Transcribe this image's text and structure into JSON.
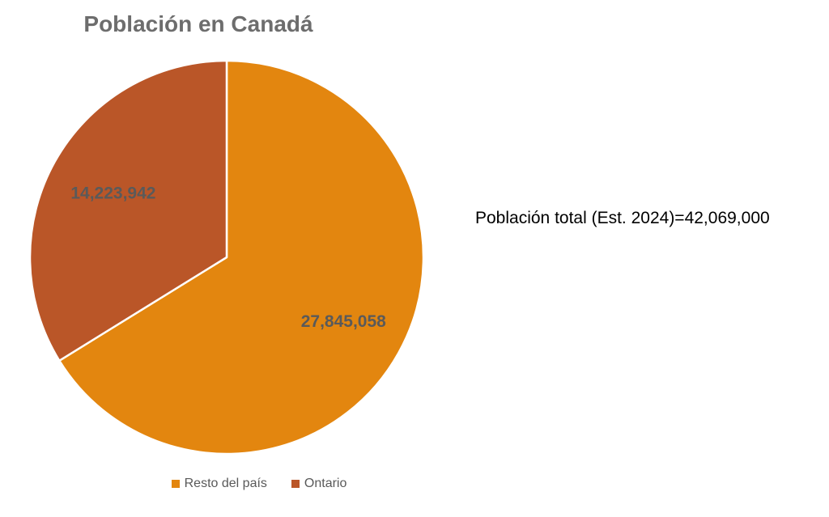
{
  "chart_data": {
    "type": "pie",
    "title": "Población en Canadá",
    "slices": [
      {
        "name": "Resto del país",
        "value": 27845058,
        "label": "27,845,058",
        "color": "#E3860F"
      },
      {
        "name": "Ontario",
        "value": 14223942,
        "label": "14,223,942",
        "color": "#BA5628"
      }
    ],
    "start_angle_deg": 0,
    "direction": "clockwise",
    "legend_position": "bottom",
    "slice_border_color": "#FFFFFF"
  },
  "annotation": "Población total (Est. 2024)=42,069,000"
}
